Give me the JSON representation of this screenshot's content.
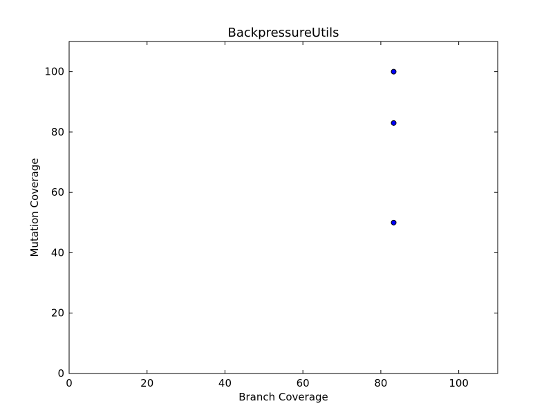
{
  "colors": {
    "background": "#ffffff",
    "axes": "#000000",
    "marker_fill": "#0000ff",
    "marker_edge": "#000000"
  },
  "chart_data": {
    "type": "scatter",
    "title": "BackpressureUtils",
    "xlabel": "Branch Coverage",
    "ylabel": "Mutation Coverage",
    "xlim": [
      0,
      110
    ],
    "ylim": [
      0,
      110
    ],
    "xticks": [
      0,
      20,
      40,
      60,
      80,
      100
    ],
    "yticks": [
      0,
      20,
      40,
      60,
      80,
      100
    ],
    "grid": false,
    "legend": false,
    "series": [
      {
        "x": [
          83.3,
          83.3,
          83.3
        ],
        "y": [
          100,
          83,
          50
        ],
        "marker": "circle"
      }
    ]
  }
}
